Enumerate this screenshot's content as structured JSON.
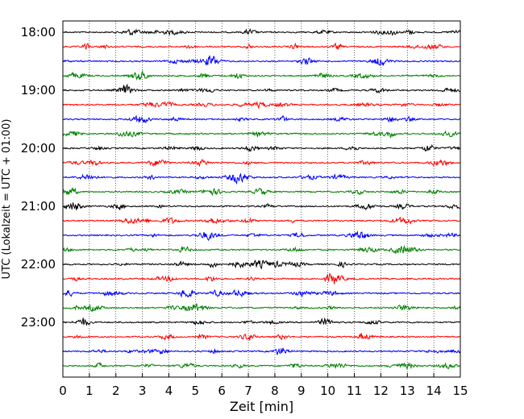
{
  "chart_data": {
    "type": "line",
    "title": "",
    "xlabel": "Zeit  [min]",
    "ylabel": "UTC (Lokalzeit = UTC + 01:00)",
    "xlim": [
      0,
      15
    ],
    "xticks": [
      "0",
      "1",
      "2",
      "3",
      "4",
      "5",
      "6",
      "7",
      "8",
      "9",
      "10",
      "11",
      "12",
      "13",
      "14",
      "15"
    ],
    "yticks": [
      "18:00",
      "19:00",
      "20:00",
      "21:00",
      "22:00",
      "23:00"
    ],
    "grid": "vertical dotted",
    "trace_interval_min": 15,
    "trace_count": 24,
    "trace_colors": [
      "#000000",
      "#ff0000",
      "#0000ff",
      "#008000"
    ]
  }
}
